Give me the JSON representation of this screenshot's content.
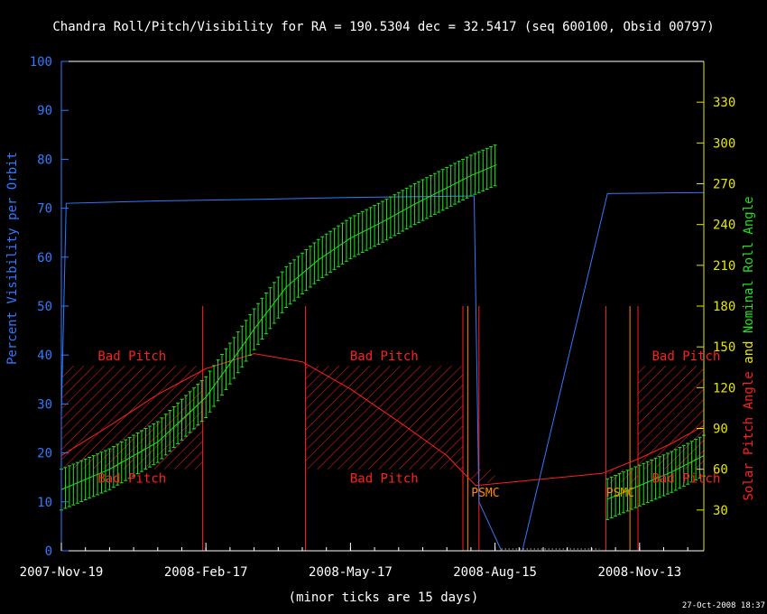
{
  "chart_data": {
    "type": "line",
    "title": "Chandra Roll/Pitch/Visibility for RA = 190.5304 dec = 32.5417 (seq 600100, Obsid 00797)",
    "xlabel": "(minor ticks are 15 days)",
    "x_ticks": [
      "2007-Nov-19",
      "2008-Feb-17",
      "2008-May-17",
      "2008-Aug-15",
      "2008-Nov-13"
    ],
    "x_range_days": [
      0,
      400
    ],
    "y_left": {
      "label": "Percent Visibility per Orbit",
      "range": [
        0,
        100
      ],
      "ticks": [
        0,
        10,
        20,
        30,
        40,
        50,
        60,
        70,
        80,
        90,
        100
      ],
      "color": "#2f7bff"
    },
    "y_right": {
      "label_parts": [
        {
          "text": "Solar Pitch Angle",
          "color": "#ff2020"
        },
        {
          "text": "and",
          "color": "#e6e600"
        },
        {
          "text": "Nominal Roll Angle",
          "color": "#22e022"
        }
      ],
      "range": [
        0,
        360
      ],
      "ticks": [
        30,
        60,
        90,
        120,
        150,
        180,
        210,
        240,
        270,
        300,
        330
      ],
      "color": "#e6e600"
    },
    "series": [
      {
        "name": "Percent Visibility per Orbit",
        "axis": "left",
        "color": "#2f7bff",
        "x": [
          0,
          3,
          60,
          120,
          180,
          257,
          260,
          274,
          275,
          287,
          340,
          400
        ],
        "y": [
          28,
          71,
          71.5,
          71.8,
          72.2,
          72.5,
          10,
          0,
          0,
          0,
          73,
          73.2
        ]
      },
      {
        "name": "Solar Pitch Angle",
        "axis": "right",
        "color": "#ff2020",
        "x": [
          0,
          30,
          60,
          90,
          120,
          150,
          180,
          210,
          240,
          258,
          337,
          360,
          380,
          400
        ],
        "y": [
          70,
          92,
          115,
          134,
          145,
          139,
          119,
          95,
          70,
          48,
          57,
          68,
          79,
          92
        ]
      },
      {
        "name": "Nominal Roll Angle",
        "axis": "right",
        "color": "#22e022",
        "x": [
          0,
          30,
          60,
          90,
          110,
          120,
          140,
          160,
          180,
          200,
          220,
          240,
          255,
          271,
          340,
          360,
          380,
          400
        ],
        "y": [
          45,
          60,
          80,
          113,
          146,
          163,
          194,
          214,
          230,
          242,
          255,
          267,
          276,
          284,
          38,
          48,
          58,
          70
        ],
        "error": 15
      }
    ],
    "bad_pitch_regions": [
      {
        "x0": 0,
        "x1": 88,
        "y0": 60,
        "y1": 136
      },
      {
        "x0": 152,
        "x1": 250,
        "y0": 60,
        "y1": 136
      },
      {
        "x0": 268,
        "x1": 287,
        "y0": 0,
        "y1": 0
      },
      {
        "x0": 359,
        "x1": 400,
        "y0": 60,
        "y1": 136
      },
      {
        "x0": 255,
        "x1": 270,
        "y0": 50,
        "y1": 60
      },
      {
        "x0": 341,
        "x1": 359,
        "y0": 50,
        "y1": 60
      }
    ],
    "bad_pitch_labels": [
      {
        "text": "Bad Pitch",
        "x": 44,
        "y": 140
      },
      {
        "text": "Bad Pitch",
        "x": 44,
        "y": 50
      },
      {
        "text": "Bad Pitch",
        "x": 201,
        "y": 140
      },
      {
        "text": "Bad Pitch",
        "x": 201,
        "y": 50
      },
      {
        "text": "Bad Pitch",
        "x": 389,
        "y": 140
      },
      {
        "text": "Bad Pitch",
        "x": 389,
        "y": 50
      }
    ],
    "psmc_labels": [
      {
        "text": "PSMC",
        "x": 264,
        "y": 40
      },
      {
        "text": "PSMC",
        "x": 348,
        "y": 40
      }
    ],
    "vertical_markers": [
      {
        "x": 88,
        "color": "#ff2020"
      },
      {
        "x": 152,
        "color": "#ff2020"
      },
      {
        "x": 250,
        "color": "#ff2020"
      },
      {
        "x": 253,
        "color": "#ff8c00"
      },
      {
        "x": 260,
        "color": "#ff2020"
      },
      {
        "x": 339,
        "color": "#ff2020"
      },
      {
        "x": 354,
        "color": "#ff8c00"
      },
      {
        "x": 359,
        "color": "#ff2020"
      }
    ],
    "timestamp": "27-Oct-2008 18:37"
  }
}
